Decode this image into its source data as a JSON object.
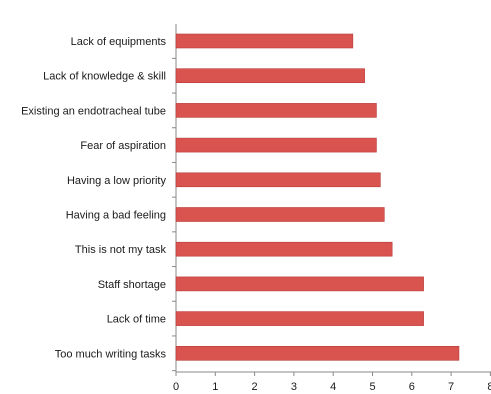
{
  "chart_data": {
    "type": "bar",
    "orientation": "horizontal",
    "categories": [
      "Lack of equipments",
      "Lack of knowledge & skill",
      "Existing an endotracheal tube",
      "Fear of aspiration",
      "Having a low priority",
      "Having a bad feeling",
      "This is not my task",
      "Staff shortage",
      "Lack of time",
      "Too much writing tasks"
    ],
    "values": [
      4.5,
      4.8,
      5.1,
      5.1,
      5.2,
      5.3,
      5.5,
      6.3,
      6.3,
      7.2
    ],
    "xlim": [
      0,
      8
    ],
    "xticks": [
      "0",
      "1",
      "2",
      "3",
      "4",
      "5",
      "6",
      "7",
      "8"
    ],
    "title": "",
    "xlabel": "",
    "ylabel": "",
    "grid": false,
    "legend": "none",
    "bar_color": "#d9534f",
    "bar_edge_color": "#b83c3a",
    "axis_color": "#888888"
  }
}
